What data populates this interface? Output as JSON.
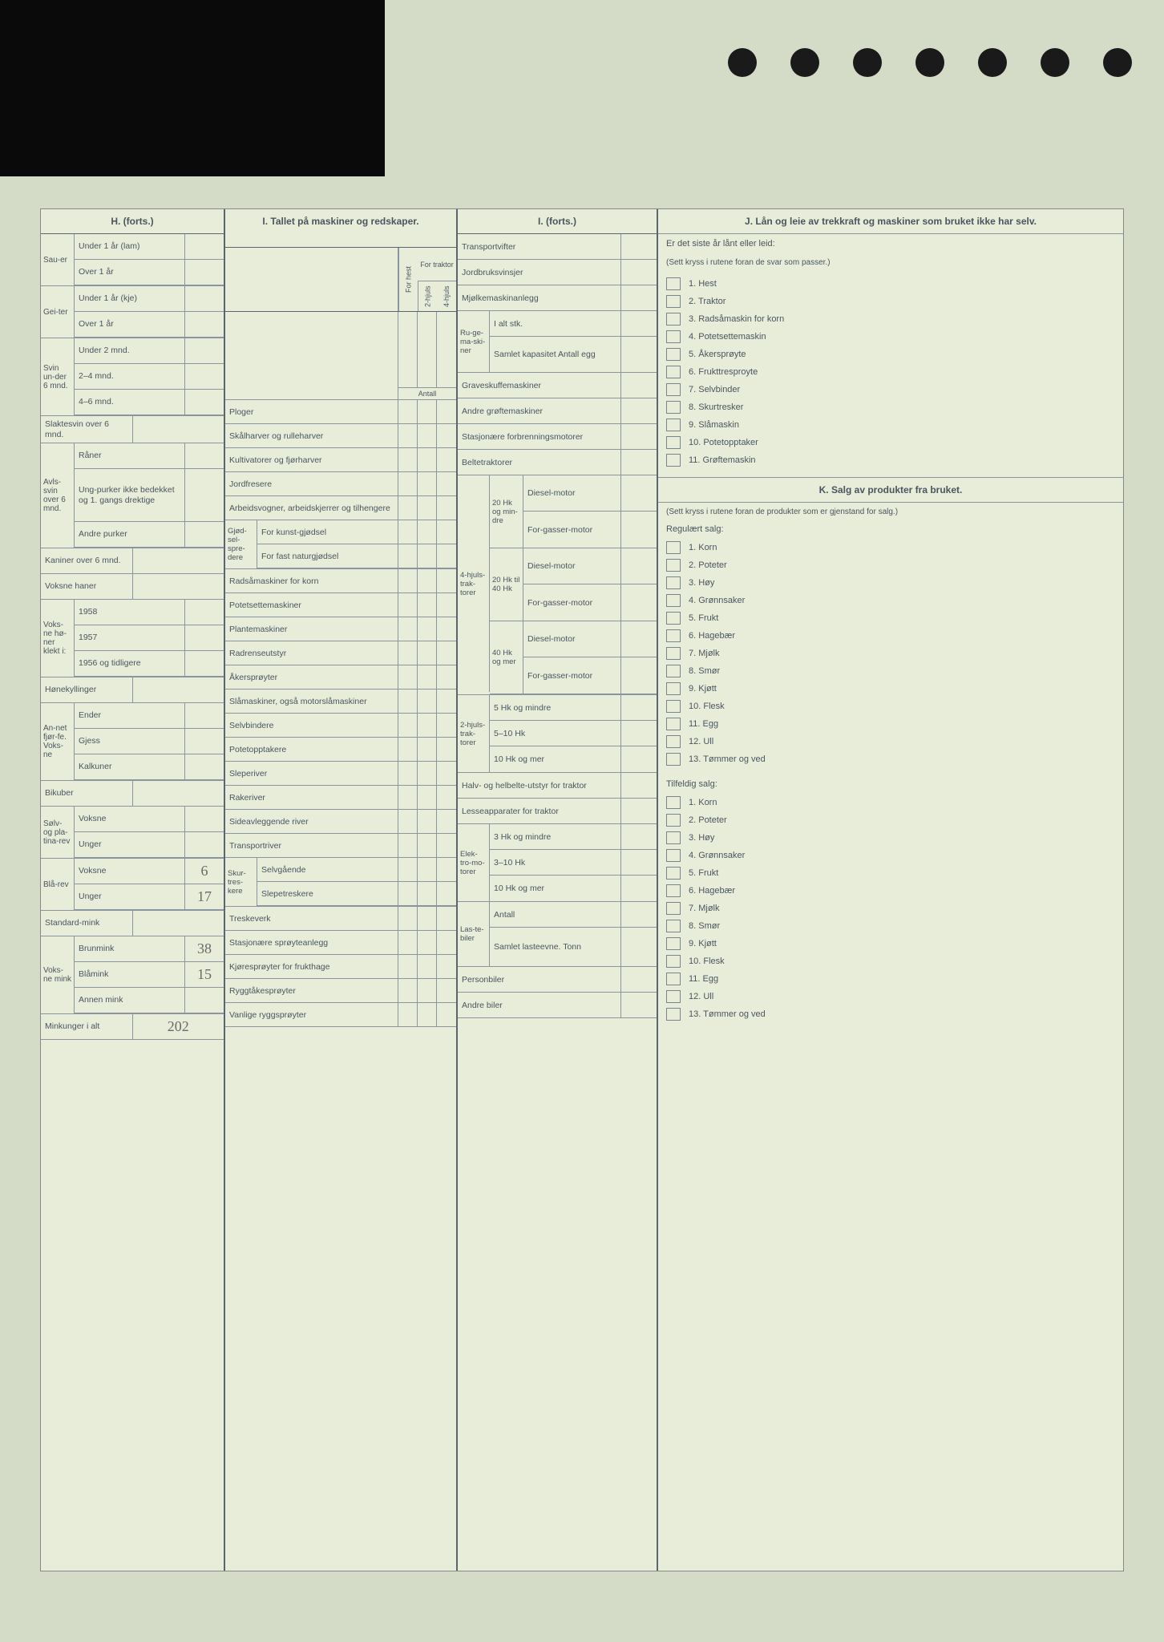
{
  "headers": {
    "h": "H. (forts.)",
    "i": "I. Tallet på maskiner og redskaper.",
    "i2": "I. (forts.)",
    "j": "J. Lån og leie av trekkraft og maskiner som bruket ikke har selv.",
    "k": "K. Salg av produkter fra bruket."
  },
  "h_rows": {
    "sauer": "Sau-er",
    "sauer_u1": "Under 1 år (lam)",
    "sauer_o1": "Over 1 år",
    "geiter": "Gei-ter",
    "geiter_u1": "Under 1 år (kje)",
    "geiter_o1": "Over 1 år",
    "svin": "Svin un-der 6 mnd.",
    "svin_u2": "Under 2 mnd.",
    "svin_24": "2–4 mnd.",
    "svin_46": "4–6 mnd.",
    "slaktesvin": "Slaktesvin over 6 mnd.",
    "avlssvin": "Avls-svin over 6 mnd.",
    "raner": "Råner",
    "ungpurker": "Ung-purker ikke bedekket og 1. gangs drektige",
    "andre_purker": "Andre purker",
    "kaniner": "Kaniner over 6 mnd.",
    "voksne_haner": "Voksne haner",
    "honer": "Voks-ne hø-ner klekt i:",
    "h1958": "1958",
    "h1957": "1957",
    "h1956": "1956 og tidligere",
    "honekyllinger": "Hønekyllinger",
    "annet": "An-net fjør-fe. Voks-ne",
    "ender": "Ender",
    "gjess": "Gjess",
    "kalkuner": "Kalkuner",
    "bikuber": "Bikuber",
    "solv": "Sølv- og pla-tina-rev",
    "solv_voksne": "Voksne",
    "solv_unger": "Unger",
    "blarev": "Blå-rev",
    "blarev_voksne": "Voksne",
    "blarev_unger": "Unger",
    "blarev_voksne_val": "6",
    "blarev_unger_val": "17",
    "standardmink": "Standard-mink",
    "voksnemink": "Voks-ne mink",
    "brunmink": "Brunmink",
    "brunmink_val": "38",
    "blamink": "Blåmink",
    "blamink_val": "15",
    "annenmink": "Annen mink",
    "minkunger": "Minkunger i alt",
    "minkunger_val": "202"
  },
  "i_subheaders": {
    "for_hest": "For hest",
    "for_traktor": "For traktor",
    "2hjuls": "2-hjuls",
    "4hjuls": "4-hjuls",
    "antall": "Antall"
  },
  "i_rows": [
    "Ploger",
    "Skålharver og rulleharver",
    "Kultivatorer og fjørharver",
    "Jordfresere",
    "Arbeidsvogner, arbeidskjerrer og tilhengere"
  ],
  "i_gjod": {
    "side": "Gjød-sel-spre-dere",
    "kunst": "For kunst-gjødsel",
    "fast": "For fast naturgjødsel"
  },
  "i_rows2": [
    "Radsåmaskiner for korn",
    "Potetsettemaskiner",
    "Plantemaskiner",
    "Radrenseutstyr",
    "Åkersprøyter",
    "Slåmaskiner, også motorslåmaskiner",
    "Selvbindere",
    "Potetopptakere",
    "Sleperiver",
    "Rakeriver",
    "Sideavleggende river",
    "Transportriver"
  ],
  "i_skur": {
    "side": "Skur-tres-kere",
    "selv": "Selvgående",
    "slepe": "Slepetreskere"
  },
  "i_rows3": [
    "Treskeverk",
    "Stasjonære sprøyteanlegg",
    "Kjøresprøyter for frukthage",
    "Ryggtåkesprøyter",
    "Vanlige ryggsprøyter"
  ],
  "i2_rows": {
    "transportvifter": "Transportvifter",
    "jordbruksvinsjer": "Jordbruksvinsjer",
    "mjolke": "Mjølkemaskinanlegg",
    "ruge": "Ru-ge-ma-ski-ner",
    "ialt": "I alt stk.",
    "samlet": "Samlet kapasitet Antall egg",
    "graveskuffe": "Graveskuffemaskiner",
    "andre_grofte": "Andre grøftemaskiner",
    "stasjonaere": "Stasjonære forbrenningsmotorer",
    "beltetraktorer": "Beltetraktorer",
    "4hjuls": "4-hjuls-trak-torer",
    "hk20": "20 Hk og min-dre",
    "hk2040": "20 Hk til 40 Hk",
    "hk40": "40 Hk og mer",
    "diesel": "Diesel-motor",
    "forgasser": "For-gasser-motor",
    "2hjuls": "2-hjuls-trak-torer",
    "hk5": "5 Hk og mindre",
    "hk510": "5–10 Hk",
    "hk10": "10 Hk og mer",
    "halvbelte": "Halv- og helbelte-utstyr for traktor",
    "lesse": "Lesseapparater for traktor",
    "elektro": "Elek-tro-mo-torer",
    "ehk3": "3 Hk og mindre",
    "ehk310": "3–10 Hk",
    "ehk10": "10 Hk og mer",
    "lastebiler": "Las-te-biler",
    "lantall": "Antall",
    "lsamlet": "Samlet lasteevne. Tonn",
    "personbiler": "Personbiler",
    "andrebiler": "Andre biler"
  },
  "j_intro": "Er det siste år lånt eller leid:",
  "j_sub": "(Sett kryss i rutene foran de svar som passer.)",
  "j_items": [
    "1. Hest",
    "2. Traktor",
    "3. Radsåmaskin for korn",
    "4. Potetsettemaskin",
    "5. Åkersprøyte",
    "6. Frukttresproyte",
    "7. Selvbinder",
    "8. Skurtresker",
    "9. Slåmaskin",
    "10. Potetopptaker",
    "11. Grøftemaskin"
  ],
  "k_sub": "(Sett kryss i rutene foran de produkter som er gjenstand for salg.)",
  "k_reg": "Regulært salg:",
  "k_reg_items": [
    "1. Korn",
    "2. Poteter",
    "3. Høy",
    "4. Grønnsaker",
    "5. Frukt",
    "6. Hagebær",
    "7. Mjølk",
    "8. Smør",
    "9. Kjøtt",
    "10. Flesk",
    "11. Egg",
    "12. Ull",
    "13. Tømmer og ved"
  ],
  "k_tilf": "Tilfeldig salg:",
  "k_tilf_items": [
    "1. Korn",
    "2. Poteter",
    "3. Høy",
    "4. Grønnsaker",
    "5. Frukt",
    "6. Hagebær",
    "7. Mjølk",
    "8. Smør",
    "9. Kjøtt",
    "10. Flesk",
    "11. Egg",
    "12. Ull",
    "13. Tømmer og ved"
  ]
}
